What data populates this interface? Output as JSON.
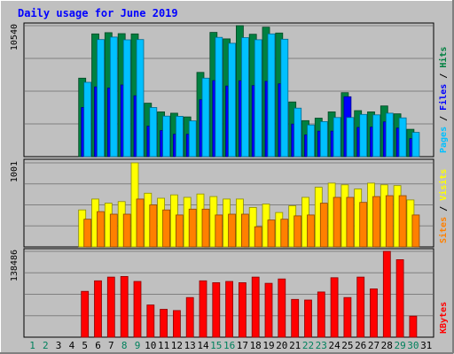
{
  "chart_data": {
    "type": "bar",
    "title": "Daily usage for June 2019",
    "categories": [
      "1",
      "2",
      "3",
      "4",
      "5",
      "6",
      "7",
      "8",
      "9",
      "10",
      "11",
      "12",
      "13",
      "14",
      "15",
      "16",
      "17",
      "18",
      "19",
      "20",
      "21",
      "22",
      "23",
      "24",
      "25",
      "26",
      "27",
      "28",
      "29",
      "30",
      "31"
    ],
    "weekend_days": [
      "1",
      "2",
      "8",
      "9",
      "15",
      "16",
      "22",
      "23",
      "29",
      "30"
    ],
    "panels": [
      {
        "id": "requests",
        "ymax_label": "10540",
        "ymax": 10540,
        "axis_labels": [
          "Pages",
          "Files",
          "Hits"
        ],
        "series": [
          {
            "name": "Hits",
            "color": "#008040",
            "values": [
              0,
              0,
              0,
              0,
              6320,
              9880,
              9980,
              9900,
              9880,
              4300,
              3600,
              3500,
              3200,
              6780,
              10000,
              9480,
              10540,
              9850,
              10420,
              9950,
              4400,
              2900,
              3100,
              3600,
              5150,
              3700,
              3600,
              4080,
              3450,
              2200,
              0
            ]
          },
          {
            "name": "Files",
            "color": "#0000ff",
            "values": [
              0,
              0,
              0,
              0,
              3960,
              5610,
              5520,
              5770,
              4900,
              2450,
              2100,
              1800,
              1800,
              4580,
              6120,
              5680,
              6100,
              5720,
              6060,
              5860,
              2620,
              1750,
              2050,
              2050,
              4820,
              2350,
              2380,
              2800,
              2300,
              1450,
              0
            ]
          },
          {
            "name": "Pages",
            "color": "#00c0ff",
            "values": [
              0,
              0,
              0,
              0,
              5980,
              9420,
              9620,
              9400,
              9420,
              3950,
              3260,
              3250,
              2880,
              6320,
              9600,
              9120,
              9580,
              9410,
              9880,
              9450,
              3900,
              2550,
              2820,
              3150,
              3150,
              3400,
              3360,
              3500,
              3120,
              1950,
              0
            ]
          }
        ]
      },
      {
        "id": "visits",
        "ymax_label": "1001",
        "ymax": 1001,
        "axis_labels": [
          "Sites",
          "Visits"
        ],
        "series": [
          {
            "name": "Visits",
            "color": "#ffff00",
            "values": [
              0,
              0,
              0,
              0,
              440,
              570,
              520,
              540,
              1001,
              640,
              580,
              620,
              590,
              630,
              600,
              570,
              570,
              470,
              510,
              410,
              490,
              590,
              710,
              760,
              740,
              690,
              760,
              740,
              730,
              560,
              0
            ]
          },
          {
            "name": "Sites",
            "color": "#ff8000",
            "values": [
              0,
              0,
              0,
              0,
              330,
              420,
              390,
              390,
              570,
              500,
              440,
              380,
              450,
              450,
              380,
              390,
              390,
              240,
              320,
              330,
              370,
              380,
              520,
              590,
              590,
              530,
              600,
              610,
              610,
              380,
              0
            ]
          }
        ]
      },
      {
        "id": "kbytes",
        "ymax_label": "138486",
        "ymax": 138486,
        "axis_labels": [
          "KBytes"
        ],
        "series": [
          {
            "name": "KBytes",
            "color": "#ff0000",
            "values": [
              0,
              0,
              0,
              0,
              74000,
              91000,
              97000,
              98000,
              90000,
              52000,
              45000,
              43000,
              64000,
              91000,
              88000,
              90000,
              88000,
              97000,
              87000,
              94000,
              61000,
              60000,
              73000,
              96000,
              64000,
              97000,
              78000,
              138486,
              125000,
              34000,
              0
            ]
          }
        ]
      }
    ],
    "grid": true
  }
}
